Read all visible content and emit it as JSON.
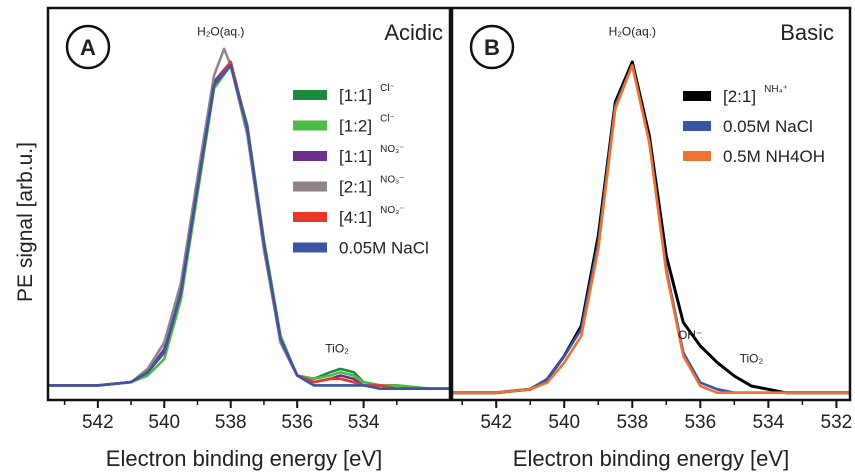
{
  "figure": {
    "ylabel": "PE signal [arb.u.]"
  },
  "chart_data": [
    {
      "type": "line",
      "badge": "A",
      "title": "Acidic",
      "xlabel": "Electron binding energy [eV]",
      "ylabel": "PE signal [arb.u.]",
      "xlim": [
        543.5,
        531.4
      ],
      "ylim": [
        0,
        1.0
      ],
      "xticks": [
        "542",
        "540",
        "538",
        "536",
        "534"
      ],
      "xtick_values": [
        542,
        540,
        538,
        536,
        534
      ],
      "annotations": [
        {
          "text": "H₂O(aq.)",
          "x": 538.3,
          "y": 1.08
        },
        {
          "text": "TiO₂",
          "x": 534.8,
          "y": 0.12
        }
      ],
      "legend_position": "right",
      "series": [
        {
          "name": "[1:1]",
          "sup": "Cl⁻",
          "color": "#1b8a3c",
          "x": [
            543.5,
            542,
            541,
            540.5,
            540,
            539.5,
            539,
            538.5,
            538,
            537.5,
            537,
            536.5,
            536,
            535.5,
            535,
            534.7,
            534.3,
            534,
            533.5,
            533,
            532,
            531.4
          ],
          "y": [
            0.02,
            0.02,
            0.03,
            0.06,
            0.12,
            0.3,
            0.62,
            0.93,
            1.0,
            0.8,
            0.45,
            0.16,
            0.05,
            0.04,
            0.06,
            0.07,
            0.06,
            0.03,
            0.02,
            0.02,
            0.01,
            0.01
          ]
        },
        {
          "name": "[1:2]",
          "sup": "Cl⁻",
          "color": "#4cbb47",
          "x": [
            543.5,
            542,
            541,
            540.5,
            540,
            539.5,
            539,
            538.5,
            538,
            537.5,
            537,
            536.5,
            536,
            535.5,
            535,
            534.7,
            534.3,
            534,
            533.5,
            533,
            532,
            531.4
          ],
          "y": [
            0.02,
            0.02,
            0.03,
            0.05,
            0.1,
            0.28,
            0.6,
            0.92,
            0.99,
            0.81,
            0.46,
            0.17,
            0.05,
            0.04,
            0.05,
            0.06,
            0.05,
            0.03,
            0.02,
            0.02,
            0.01,
            0.01
          ]
        },
        {
          "name": "[1:1]",
          "sup": "NO₃⁻",
          "color": "#6b2f8e",
          "x": [
            543.5,
            542,
            541,
            540.5,
            540,
            539.5,
            539,
            538.5,
            538,
            537.5,
            537,
            536.5,
            536,
            535.5,
            535,
            534.7,
            534.3,
            534,
            533.5,
            533,
            532,
            531.4
          ],
          "y": [
            0.02,
            0.02,
            0.03,
            0.06,
            0.13,
            0.31,
            0.63,
            0.94,
            1.0,
            0.79,
            0.44,
            0.15,
            0.05,
            0.03,
            0.04,
            0.05,
            0.04,
            0.02,
            0.02,
            0.01,
            0.01,
            0.01
          ]
        },
        {
          "name": "[2:1]",
          "sup": "NO₃⁻",
          "color": "#8f8587",
          "x": [
            543.5,
            542,
            541,
            540.5,
            540,
            539.5,
            539,
            538.5,
            538.2,
            538,
            537.5,
            537,
            536.5,
            536,
            535.5,
            535,
            534.7,
            534.3,
            534,
            533.5,
            533,
            532,
            531.4
          ],
          "y": [
            0.02,
            0.02,
            0.03,
            0.07,
            0.15,
            0.33,
            0.65,
            0.96,
            1.04,
            0.99,
            0.78,
            0.43,
            0.15,
            0.05,
            0.03,
            0.04,
            0.04,
            0.03,
            0.02,
            0.02,
            0.01,
            0.01,
            0.01
          ]
        },
        {
          "name": "[4:1]",
          "sup": "NO₃⁻",
          "color": "#e8372c",
          "x": [
            543.5,
            542,
            541,
            540.5,
            540,
            539.5,
            539,
            538.5,
            538,
            537.5,
            537,
            536.5,
            536,
            535.5,
            535,
            534.7,
            534.3,
            534,
            533.5,
            533,
            532,
            531.4
          ],
          "y": [
            0.02,
            0.02,
            0.03,
            0.06,
            0.12,
            0.3,
            0.62,
            0.93,
            1.0,
            0.8,
            0.45,
            0.16,
            0.05,
            0.03,
            0.04,
            0.04,
            0.03,
            0.02,
            0.02,
            0.01,
            0.01,
            0.01
          ]
        },
        {
          "name": "0.05M NaCl",
          "sup": "",
          "color": "#3a55a4",
          "x": [
            543.5,
            542,
            541,
            540.5,
            540,
            539.5,
            539,
            538.5,
            538,
            537.5,
            537,
            536.5,
            536,
            535.5,
            535,
            534.5,
            534,
            533.5,
            533,
            532,
            531.4
          ],
          "y": [
            0.02,
            0.02,
            0.03,
            0.06,
            0.12,
            0.3,
            0.62,
            0.93,
            0.99,
            0.8,
            0.45,
            0.16,
            0.05,
            0.02,
            0.02,
            0.02,
            0.02,
            0.01,
            0.01,
            0.01,
            0.01
          ]
        }
      ]
    },
    {
      "type": "line",
      "badge": "B",
      "title": "Basic",
      "xlabel": "Electron binding energy [eV]",
      "xlim": [
        543.3,
        531.6
      ],
      "ylim": [
        0,
        1.0
      ],
      "xticks": [
        "542",
        "540",
        "538",
        "536",
        "534",
        "532"
      ],
      "xtick_values": [
        542,
        540,
        538,
        536,
        534,
        532
      ],
      "annotations": [
        {
          "text": "H₂O(aq.)",
          "x": 538.0,
          "y": 1.08
        },
        {
          "text": "OH⁻",
          "x": 536.3,
          "y": 0.17
        },
        {
          "text": "TiO₂",
          "x": 534.5,
          "y": 0.1
        }
      ],
      "legend_position": "top-right",
      "series": [
        {
          "name": "[2:1]",
          "sup": "NH₄⁺",
          "color": "#000000",
          "x": [
            543.3,
            542,
            541,
            540.5,
            540,
            539.5,
            539,
            538.5,
            538,
            537.5,
            537,
            536.5,
            536,
            535.5,
            535,
            534.5,
            534,
            533.5,
            533,
            532,
            531.6
          ],
          "y": [
            0.01,
            0.01,
            0.02,
            0.05,
            0.12,
            0.21,
            0.48,
            0.88,
            1.0,
            0.78,
            0.42,
            0.22,
            0.15,
            0.1,
            0.06,
            0.03,
            0.02,
            0.01,
            0.01,
            0.01,
            0.01
          ]
        },
        {
          "name": "0.05M NaCl",
          "sup": "",
          "color": "#3a55a4",
          "x": [
            543.3,
            542,
            541,
            540.5,
            540,
            539.5,
            539,
            538.5,
            538,
            537.5,
            537,
            536.5,
            536,
            535.5,
            535,
            534.5,
            534,
            533,
            532,
            531.6
          ],
          "y": [
            0.01,
            0.01,
            0.02,
            0.05,
            0.12,
            0.2,
            0.46,
            0.87,
            0.99,
            0.76,
            0.38,
            0.13,
            0.04,
            0.02,
            0.01,
            0.01,
            0.01,
            0.01,
            0.01,
            0.01
          ]
        },
        {
          "name": "0.5M NH4OH",
          "sup": "",
          "color": "#ee7230",
          "x": [
            543.3,
            542,
            541,
            540.5,
            540,
            539.5,
            539,
            538.5,
            538,
            537.5,
            537,
            536.5,
            536,
            535.5,
            535,
            534.5,
            534,
            533,
            532,
            531.6
          ],
          "y": [
            0.01,
            0.01,
            0.02,
            0.04,
            0.1,
            0.18,
            0.44,
            0.86,
            0.99,
            0.76,
            0.37,
            0.12,
            0.03,
            0.01,
            0.01,
            0.01,
            0.01,
            0.01,
            0.01,
            0.01
          ]
        }
      ]
    }
  ]
}
